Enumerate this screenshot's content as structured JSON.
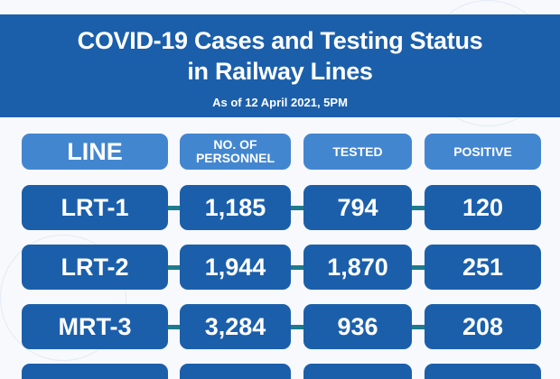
{
  "header": {
    "title_line1": "COVID-19 Cases and Testing Status",
    "title_line2": "in Railway Lines",
    "subtitle": "As of 12 April 2021, 5PM"
  },
  "table": {
    "columns": [
      "LINE",
      "NO. OF PERSONNEL",
      "TESTED",
      "POSITIVE"
    ],
    "rows": [
      {
        "line": "LRT-1",
        "personnel": "1,185",
        "tested": "794",
        "positive": "120"
      },
      {
        "line": "LRT-2",
        "personnel": "1,944",
        "tested": "1,870",
        "positive": "251"
      },
      {
        "line": "MRT-3",
        "personnel": "3,284",
        "tested": "936",
        "positive": "208"
      }
    ]
  },
  "colors": {
    "banner": "#1b5fab",
    "header_cell": "#4386d0",
    "row_cell": "#1b5fab",
    "connector": "#1e7a8c"
  }
}
